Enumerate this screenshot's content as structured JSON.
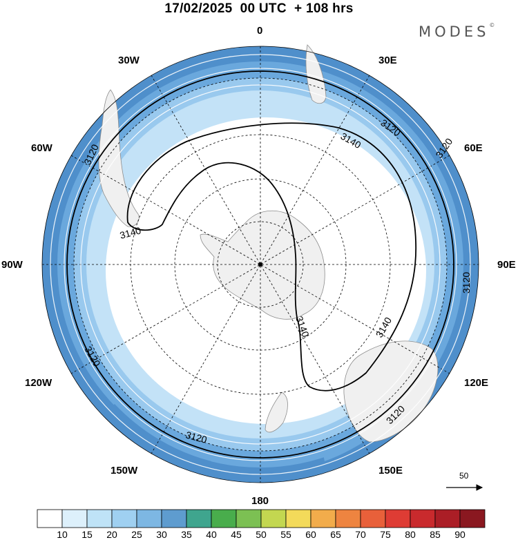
{
  "title": "17/02/2025  00 UTC  + 108 hrs",
  "brand": {
    "text": "MODES",
    "mark": "©"
  },
  "longitude_labels": {
    "top": "0",
    "bottom": "180",
    "left": "90W",
    "right": "90E",
    "upper_left_1": "30W",
    "upper_left_2": "60W",
    "upper_right_1": "30E",
    "upper_right_2": "60E",
    "lower_left_1": "120W",
    "lower_left_2": "150W",
    "lower_right_1": "120E",
    "lower_right_2": "150E"
  },
  "contours": [
    {
      "id": "outer",
      "level": "3120",
      "label_instances": [
        "3120",
        "3120",
        "3120",
        "3120",
        "3120",
        "3120",
        "3120"
      ]
    },
    {
      "id": "inner",
      "level": "3140",
      "label_instances": [
        "3140",
        "3140",
        "3140",
        "3140"
      ]
    }
  ],
  "wind_reference": {
    "value": "50"
  },
  "colorbar": {
    "labels": [
      "10",
      "15",
      "20",
      "25",
      "30",
      "35",
      "40",
      "45",
      "50",
      "55",
      "60",
      "65",
      "70",
      "75",
      "80",
      "85",
      "90"
    ],
    "colors": [
      "#ffffff",
      "#ddf0fb",
      "#bfe3f7",
      "#9fd0f1",
      "#7db7e3",
      "#5e9ccf",
      "#3fa58e",
      "#49ad4c",
      "#7cc053",
      "#c3d750",
      "#f3da5a",
      "#f2ac4b",
      "#ee8440",
      "#e8603a",
      "#de3c34",
      "#c92a2d",
      "#ab1e26",
      "#8a1820"
    ]
  },
  "colors": {
    "land": "#f0f0f0",
    "coast": "#8c8c8c",
    "contour": "#000000",
    "grid": "#000000"
  }
}
